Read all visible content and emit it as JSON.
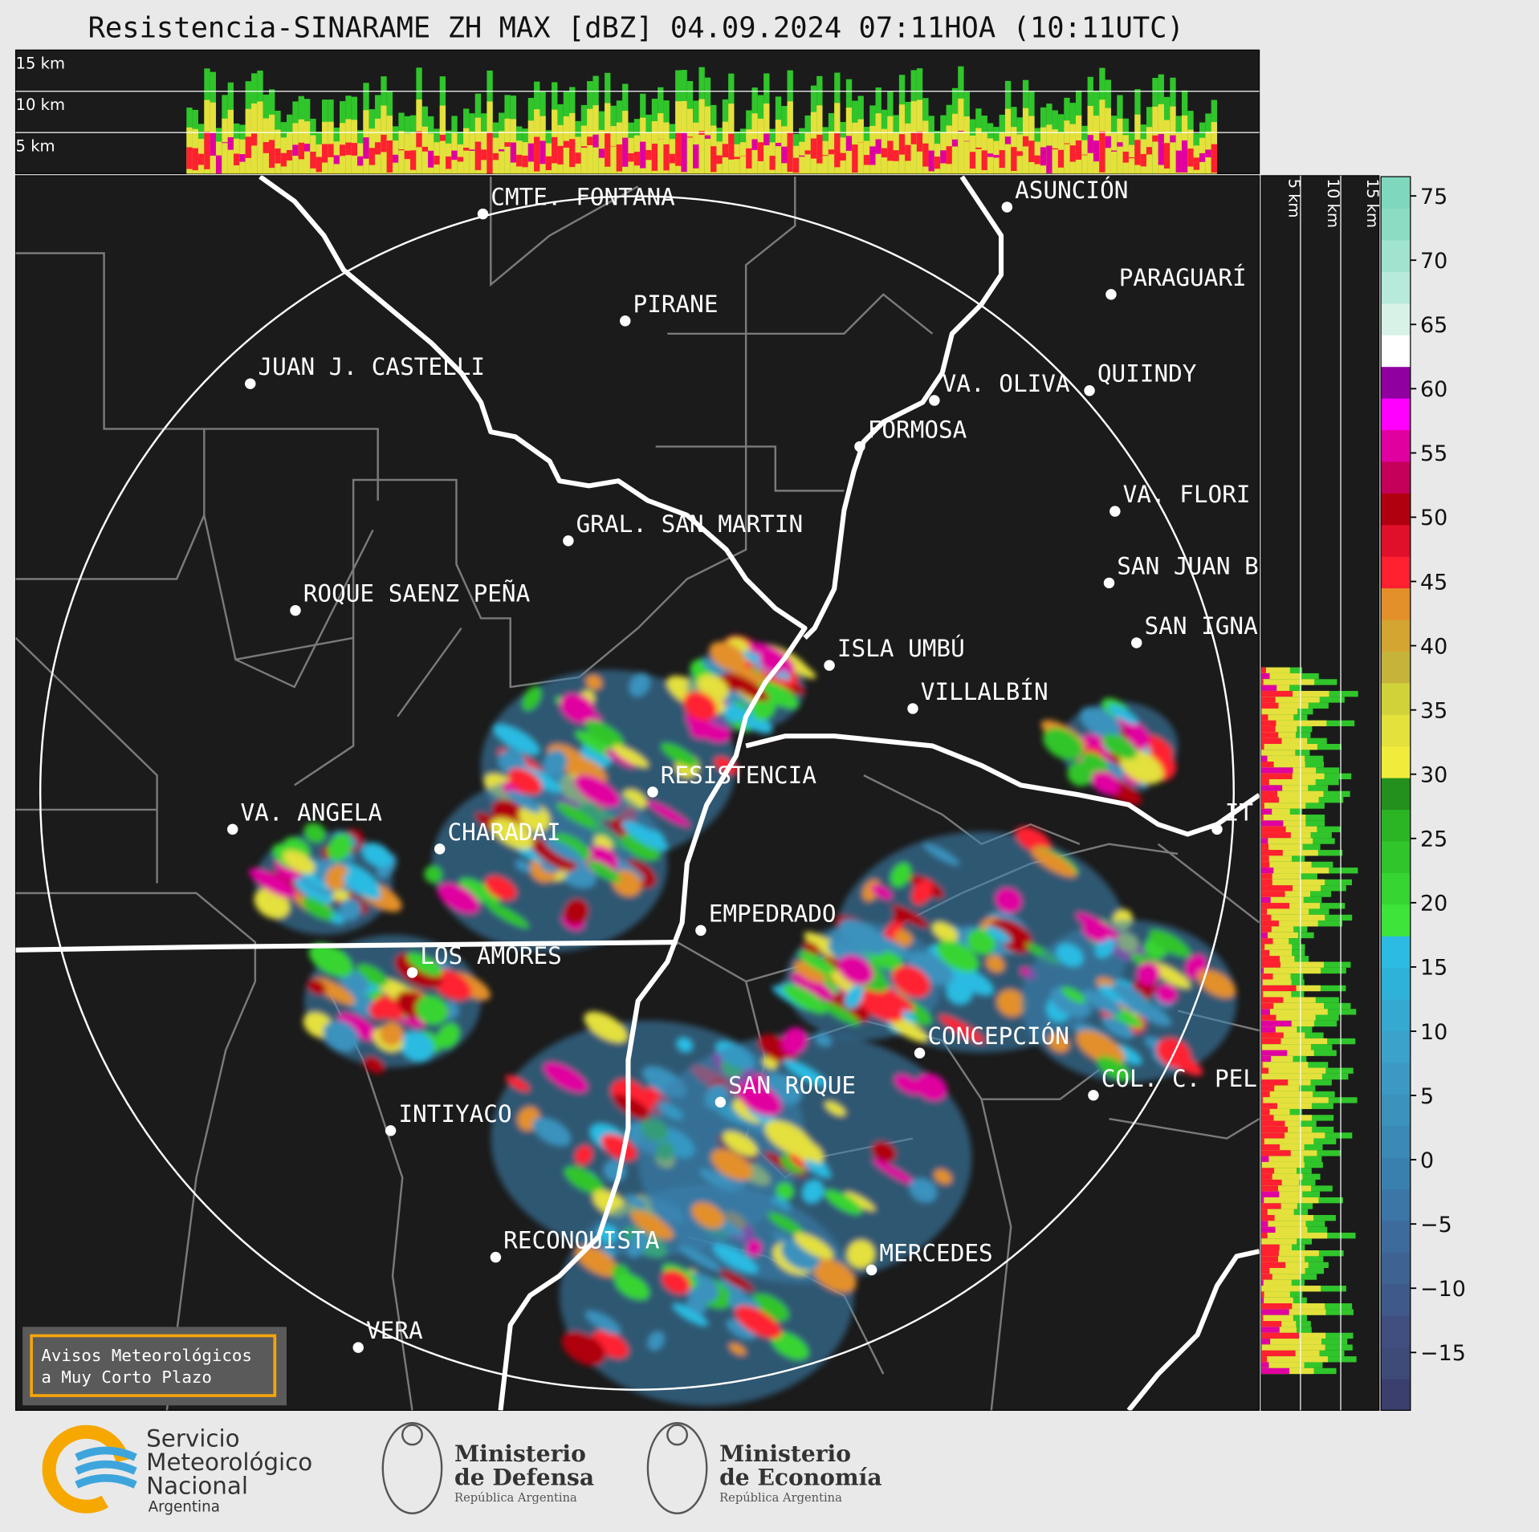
{
  "title": "Resistencia-SINARAME ZH MAX [dBZ] 04.09.2024 07:11HOA (10:11UTC)",
  "cross_section": {
    "top_labels": [
      "15 km",
      "10 km",
      "5 km"
    ],
    "side_labels": [
      "5 km",
      "10 km",
      "15 km"
    ]
  },
  "map": {
    "places": [
      "CMTE. FONTANA",
      "PIRANE",
      "JUAN J. CASTELLI",
      "ASUNCIÓN",
      "PARAGUARÍ",
      "VA. OLIVA",
      "QUIINDY",
      "FORMOSA",
      "VA. FLORI",
      "GRAL. SAN MARTIN",
      "SAN JUAN B",
      "ROQUE SAENZ PEÑA",
      "SAN IGNA",
      "ISLA UMBÚ",
      "VILLALBÍN",
      "RESISTENCIA",
      "VA. ANGELA",
      "CHARADAI",
      "IT",
      "EMPEDRADO",
      "LOS AMORES",
      "CONCEPCIÓN",
      "COL. C. PEL",
      "SAN ROQUE",
      "INTIYACO",
      "RECONQUISTA",
      "MERCEDES",
      "VERA"
    ]
  },
  "colorbar": {
    "lim": [
      -19.5,
      76.5
    ],
    "ticks": [
      {
        "value": -15,
        "label": "−15"
      },
      {
        "value": -10,
        "label": "−10"
      },
      {
        "value": -5,
        "label": "−5"
      },
      0,
      5,
      10,
      15,
      20,
      25,
      30,
      35,
      40,
      45,
      50,
      55,
      60,
      65,
      70,
      75
    ],
    "colors": [
      "#3b3f6e",
      "#3e4a78",
      "#404f80",
      "#3f5a8a",
      "#3e6393",
      "#3d6c9c",
      "#3b76a6",
      "#3a80ae",
      "#3a89b6",
      "#3a92bd",
      "#3b99c3",
      "#3aa2cb",
      "#36a9d1",
      "#2fb2da",
      "#2cbbe2",
      "#3fe43a",
      "#37d531",
      "#30c52b",
      "#2bb525",
      "#238f1c",
      "#f1ec3c",
      "#e4e03c",
      "#d1d23a",
      "#c6b43a",
      "#d4a531",
      "#e3902a",
      "#ff2030",
      "#e0102a",
      "#b00010",
      "#c4005a",
      "#e000a0",
      "#ff00ff",
      "#9000a0",
      "#ffffff",
      "#d8f2e8",
      "#b8eadb",
      "#a0e4d0",
      "#8cdcc4",
      "#7fd8bd"
    ]
  },
  "notice": [
    "Avisos Meteorológicos",
    "a Muy Corto Plazo"
  ],
  "logos": {
    "smn": [
      "Servicio",
      "Meteorológico",
      "Nacional",
      "Argentina"
    ],
    "defensa": [
      "Ministerio",
      "de Defensa",
      "República Argentina"
    ],
    "economia": [
      "Ministerio",
      "de Economía",
      "República Argentina"
    ]
  }
}
